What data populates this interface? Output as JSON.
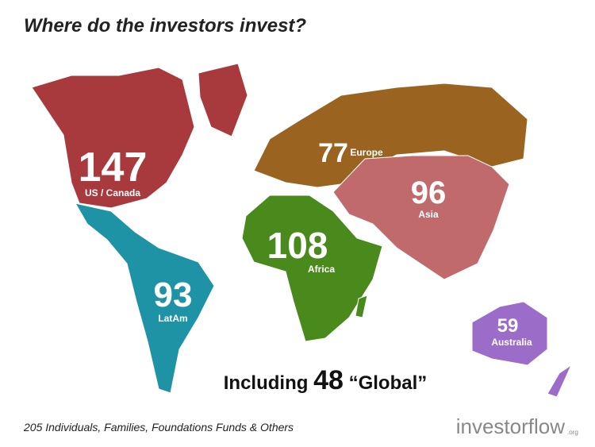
{
  "title": "Where do the investors invest?",
  "regions": [
    {
      "label": "US / Canada",
      "count": 147,
      "color": "#a83a3e"
    },
    {
      "label": "Europe",
      "count": 77,
      "color": "#9a6420"
    },
    {
      "label": "Asia",
      "count": 96,
      "color": "#c06a6c"
    },
    {
      "label": "Africa",
      "count": 108,
      "color": "#4a8a1c"
    },
    {
      "label": "LatAm",
      "count": 93,
      "color": "#1e93a6"
    },
    {
      "label": "Australia",
      "count": 59,
      "color": "#9b6cc8"
    }
  ],
  "global": {
    "prefix": "Including",
    "count": 48,
    "label": "“Global”"
  },
  "footer": "205 Individuals, Families, Foundations Funds & Others",
  "logo": {
    "name": "investorflow",
    "suffix": ".org"
  }
}
